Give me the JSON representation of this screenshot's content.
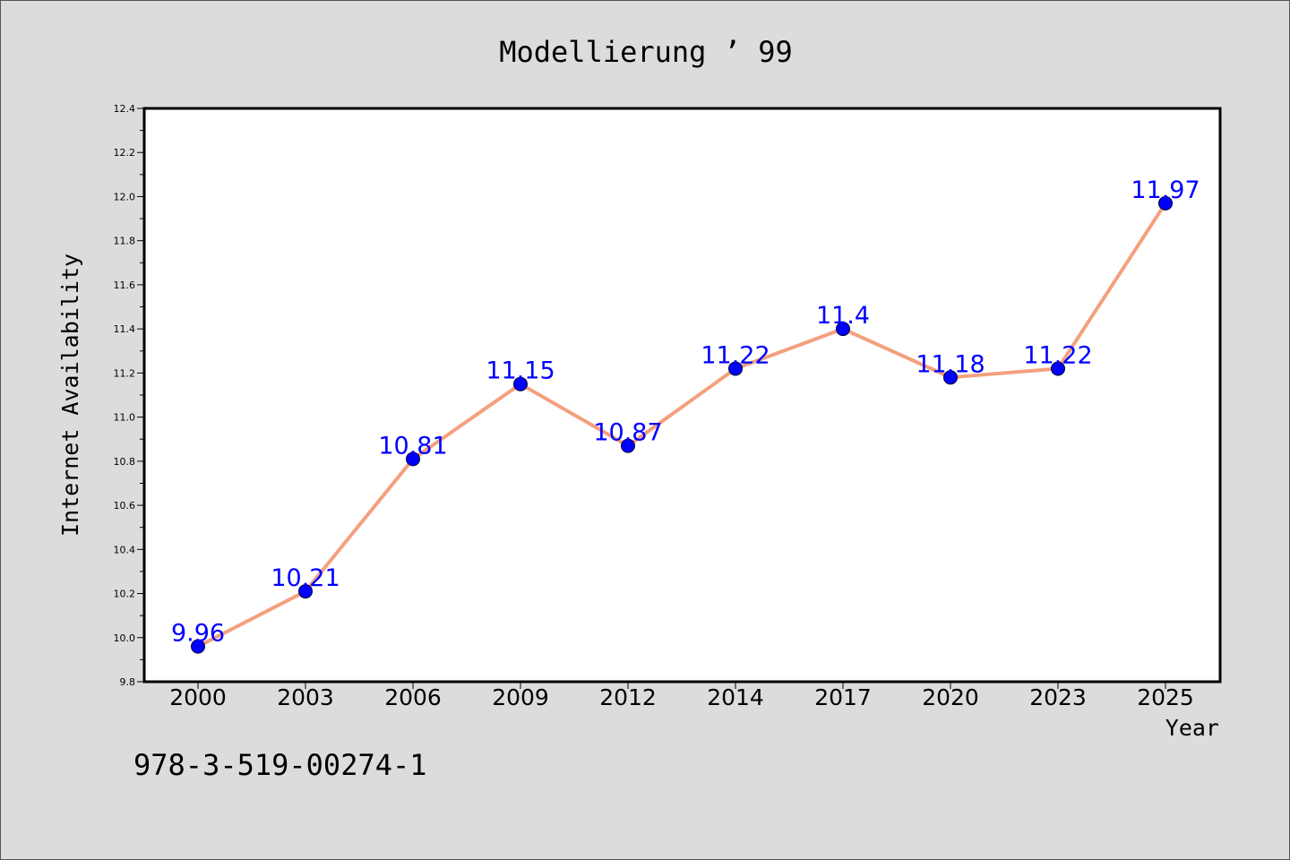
{
  "chart_data": {
    "type": "line",
    "title": "Modellierung ’ 99",
    "xlabel": "Year",
    "ylabel": "Internet Availability",
    "categories": [
      "2000",
      "2003",
      "2006",
      "2009",
      "2012",
      "2014",
      "2017",
      "2020",
      "2023",
      "2025"
    ],
    "values": [
      9.96,
      10.21,
      10.81,
      11.15,
      10.87,
      11.22,
      11.4,
      11.18,
      11.22,
      11.97
    ],
    "data_labels": [
      "9.96",
      "10.21",
      "10.81",
      "11.15",
      "10.87",
      "11.22",
      "11.4",
      "11.18",
      "11.22",
      "11.97"
    ],
    "ylim": [
      9.8,
      12.4
    ],
    "yticks": [
      "9.8",
      "10.0",
      "10.2",
      "10.4",
      "10.6",
      "10.8",
      "11.0",
      "11.2",
      "11.4",
      "11.6",
      "11.8",
      "12.0",
      "12.2",
      "12.4"
    ],
    "grid": false,
    "line_color": "#f4a07e",
    "marker_color": "#0000ff",
    "label_color": "#0000ff",
    "background_color": "#dcdcdc",
    "plot_background_color": "#ffffff"
  },
  "footer": {
    "isbn": "978-3-519-00274-1"
  }
}
